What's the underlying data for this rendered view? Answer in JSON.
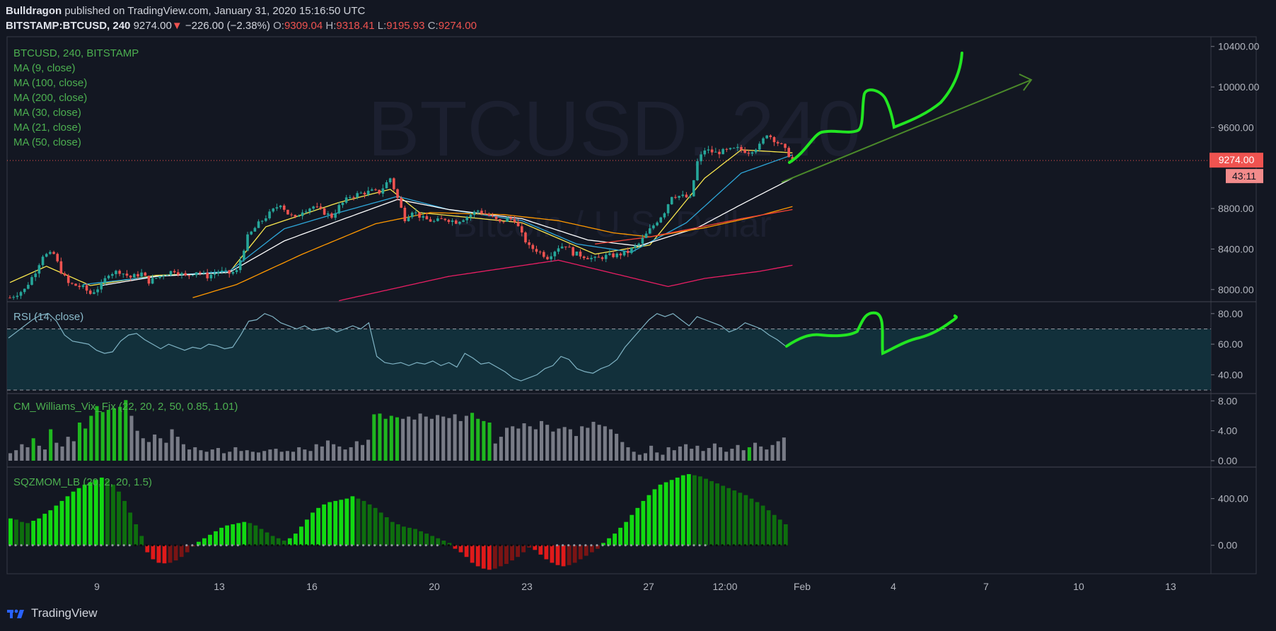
{
  "header": {
    "author": "Bulldragon",
    "published": "published on TradingView.com, January 31, 2020 15:16:50 UTC",
    "symbol": "BITSTAMP:BTCUSD, 240",
    "last": "9274.00",
    "change_arrow": "▼",
    "change": "−226.00 (−2.38%)",
    "o_label": "O:",
    "o": "9309.04",
    "h_label": "H:",
    "h": "9318.41",
    "l_label": "L:",
    "l": "9195.93",
    "c_label": "C:",
    "c": "9274.00"
  },
  "watermark": {
    "line1": "BTCUSD, 240",
    "line2": "Bitcoin / U.S. Dollar"
  },
  "legend": {
    "main": "BTCUSD, 240, BITSTAMP",
    "ma": [
      "MA (9, close)",
      "MA (100, close)",
      "MA (200, close)",
      "MA (30, close)",
      "MA (21, close)",
      "MA (50, close)"
    ]
  },
  "price_badge": {
    "value": "9274.00",
    "countdown": "43:11"
  },
  "footer": {
    "brand": "TradingView"
  },
  "colors": {
    "background": "#131722",
    "up": "#26a69a",
    "down": "#ef5350",
    "ma9": "#f9e74e",
    "ma21": "#2ea7d9",
    "ma30": "#ffffff",
    "ma50": "#ff9800",
    "ma100": "#f44336",
    "ma200": "#e91e63",
    "annotation": "#00ff00",
    "rsi": "#7fb3c4",
    "rsi_band": "#13353f",
    "vix_green": "#1fb71f",
    "vix_gray": "#787b86",
    "sqz_bright_green": "#12d912",
    "sqz_dark_green": "#0e6e0e",
    "sqz_bright_red": "#e01a1a",
    "sqz_dark_red": "#7a1414"
  },
  "chart_data": [
    {
      "type": "candlestick",
      "title": "BTCUSD, 240, BITSTAMP",
      "x_ticks": [
        "9",
        "13",
        "16",
        "20",
        "23",
        "27",
        "12:00",
        "Feb",
        "4",
        "7",
        "10",
        "13"
      ],
      "y_ticks": [
        "10400.00",
        "10000.00",
        "9600.00",
        "8800.00",
        "8400.00",
        "8000.00"
      ],
      "ylim": [
        7880,
        10440
      ],
      "last_price": 9274,
      "close_path": [
        [
          0,
          7920
        ],
        [
          4,
          8000
        ],
        [
          7,
          8180
        ],
        [
          9,
          8340
        ],
        [
          12,
          8350
        ],
        [
          14,
          8180
        ],
        [
          16,
          8060
        ],
        [
          20,
          8020
        ],
        [
          22,
          7960
        ],
        [
          25,
          8040
        ],
        [
          27,
          8160
        ],
        [
          30,
          8180
        ],
        [
          33,
          8120
        ],
        [
          36,
          8160
        ],
        [
          38,
          8080
        ],
        [
          42,
          8150
        ],
        [
          45,
          8190
        ],
        [
          48,
          8130
        ],
        [
          51,
          8180
        ],
        [
          54,
          8130
        ],
        [
          57,
          8180
        ],
        [
          60,
          8160
        ],
        [
          62,
          8180
        ],
        [
          65,
          8520
        ],
        [
          68,
          8650
        ],
        [
          71,
          8750
        ],
        [
          74,
          8850
        ],
        [
          76,
          8750
        ],
        [
          78,
          8700
        ],
        [
          80,
          8780
        ],
        [
          83,
          8820
        ],
        [
          86,
          8760
        ],
        [
          88,
          8720
        ],
        [
          90,
          8820
        ],
        [
          93,
          8920
        ],
        [
          96,
          8950
        ],
        [
          99,
          8970
        ],
        [
          101,
          8960
        ],
        [
          104,
          9100
        ],
        [
          106,
          8900
        ],
        [
          108,
          8700
        ],
        [
          110,
          8780
        ],
        [
          113,
          8700
        ],
        [
          116,
          8670
        ],
        [
          119,
          8700
        ],
        [
          122,
          8670
        ],
        [
          125,
          8720
        ],
        [
          128,
          8780
        ],
        [
          131,
          8730
        ],
        [
          134,
          8660
        ],
        [
          136,
          8700
        ],
        [
          138,
          8690
        ],
        [
          140,
          8540
        ],
        [
          142,
          8420
        ],
        [
          144,
          8390
        ],
        [
          147,
          8320
        ],
        [
          150,
          8420
        ],
        [
          152,
          8440
        ],
        [
          154,
          8360
        ],
        [
          157,
          8330
        ],
        [
          160,
          8300
        ],
        [
          163,
          8330
        ],
        [
          166,
          8340
        ],
        [
          169,
          8370
        ],
        [
          172,
          8450
        ],
        [
          175,
          8590
        ],
        [
          177,
          8680
        ],
        [
          179,
          8770
        ],
        [
          181,
          8930
        ],
        [
          184,
          8920
        ],
        [
          186,
          8900
        ],
        [
          188,
          9260
        ],
        [
          190,
          9380
        ],
        [
          193,
          9350
        ],
        [
          196,
          9370
        ],
        [
          199,
          9390
        ],
        [
          202,
          9360
        ],
        [
          205,
          9420
        ],
        [
          207,
          9540
        ],
        [
          209,
          9480
        ],
        [
          211,
          9420
        ],
        [
          213,
          9330
        ],
        [
          214,
          9274
        ]
      ],
      "series": [
        {
          "name": "MA (9, close)",
          "points": [
            [
              0,
              8070
            ],
            [
              10,
              8230
            ],
            [
              22,
              8040
            ],
            [
              40,
              8140
            ],
            [
              60,
              8170
            ],
            [
              70,
              8620
            ],
            [
              90,
              8860
            ],
            [
              104,
              8990
            ],
            [
              112,
              8760
            ],
            [
              140,
              8660
            ],
            [
              160,
              8350
            ],
            [
              175,
              8440
            ],
            [
              190,
              9100
            ],
            [
              200,
              9380
            ],
            [
              214,
              9350
            ]
          ]
        },
        {
          "name": "MA (21, close)",
          "points": [
            [
              20,
              8050
            ],
            [
              40,
              8130
            ],
            [
              60,
              8180
            ],
            [
              75,
              8600
            ],
            [
              90,
              8760
            ],
            [
              106,
              8920
            ],
            [
              120,
              8790
            ],
            [
              140,
              8680
            ],
            [
              155,
              8450
            ],
            [
              170,
              8370
            ],
            [
              185,
              8660
            ],
            [
              200,
              9150
            ],
            [
              214,
              9330
            ]
          ]
        },
        {
          "name": "MA (30, close)",
          "points": [
            [
              25,
              8040
            ],
            [
              40,
              8130
            ],
            [
              60,
              8170
            ],
            [
              75,
              8480
            ],
            [
              90,
              8680
            ],
            [
              106,
              8890
            ],
            [
              120,
              8790
            ],
            [
              140,
              8700
            ],
            [
              158,
              8490
            ],
            [
              172,
              8430
            ],
            [
              188,
              8610
            ],
            [
              200,
              8840
            ],
            [
              214,
              9100
            ]
          ]
        },
        {
          "name": "MA (50, close)",
          "points": [
            [
              50,
              7920
            ],
            [
              62,
              8050
            ],
            [
              80,
              8350
            ],
            [
              100,
              8650
            ],
            [
              115,
              8760
            ],
            [
              135,
              8740
            ],
            [
              150,
              8680
            ],
            [
              165,
              8560
            ],
            [
              175,
              8520
            ],
            [
              190,
              8610
            ],
            [
              205,
              8730
            ],
            [
              214,
              8820
            ]
          ]
        },
        {
          "name": "MA (100, close)",
          "points": [
            [
              160,
              8450
            ],
            [
              175,
              8520
            ],
            [
              185,
              8590
            ],
            [
              200,
              8700
            ],
            [
              214,
              8790
            ]
          ]
        },
        {
          "name": "MA (200, close)",
          "points": [
            [
              90,
              7890
            ],
            [
              120,
              8130
            ],
            [
              150,
              8290
            ],
            [
              180,
              8030
            ],
            [
              190,
              8110
            ],
            [
              205,
              8180
            ],
            [
              214,
              8240
            ]
          ]
        }
      ]
    },
    {
      "type": "line",
      "title": "RSI (14, close)",
      "y_ticks": [
        "80.00",
        "60.00",
        "40.00"
      ],
      "ylim": [
        30,
        85
      ],
      "band": [
        30,
        70
      ],
      "values": [
        64,
        68,
        72,
        76,
        79,
        80,
        75,
        66,
        62,
        61,
        60,
        56,
        54,
        55,
        62,
        66,
        67,
        63,
        60,
        57,
        60,
        58,
        56,
        58,
        57,
        60,
        59,
        57,
        58,
        66,
        75,
        76,
        80,
        78,
        74,
        72,
        70,
        72,
        69,
        70,
        71,
        68,
        70,
        72,
        70,
        74,
        52,
        48,
        47,
        48,
        46,
        48,
        47,
        49,
        46,
        48,
        45,
        54,
        51,
        47,
        48,
        45,
        42,
        38,
        36,
        38,
        40,
        44,
        46,
        52,
        50,
        44,
        42,
        41,
        44,
        46,
        50,
        58,
        64,
        70,
        76,
        80,
        78,
        80,
        76,
        72,
        78,
        76,
        74,
        72,
        68,
        70,
        74,
        72,
        70,
        66,
        63,
        59
      ]
    },
    {
      "type": "bar",
      "title": "CM_Williams_Vix_Fix (22, 20, 2, 50, 0.85, 1.01)",
      "y_ticks": [
        "8.00",
        "4.00",
        "0.00"
      ],
      "ylim": [
        0,
        8.5
      ],
      "values": [
        1.0,
        1.4,
        2.2,
        1.8,
        3.0,
        2.0,
        1.5,
        4.2,
        2.4,
        1.9,
        3.2,
        2.6,
        5.1,
        4.3,
        6.0,
        7.3,
        6.5,
        6.8,
        7.0,
        7.2,
        8.1,
        6.0,
        4.0,
        3.0,
        2.5,
        3.5,
        3.0,
        2.4,
        4.2,
        3.2,
        2.2,
        1.5,
        1.8,
        1.4,
        1.2,
        1.5,
        1.7,
        1.0,
        1.2,
        1.8,
        1.3,
        1.4,
        1.2,
        1.1,
        1.3,
        1.5,
        1.6,
        1.2,
        1.3,
        1.2,
        1.8,
        1.5,
        1.3,
        2.2,
        1.9,
        2.7,
        2.2,
        1.9,
        1.5,
        1.8,
        2.6,
        2.1,
        2.8,
        6.2,
        6.3,
        5.6,
        6.0,
        5.8,
        5.6,
        5.9,
        5.5,
        6.3,
        5.9,
        5.6,
        6.1,
        5.9,
        5.7,
        6.2,
        5.3,
        6.0,
        6.4,
        5.6,
        5.3,
        5.1,
        2.3,
        3.2,
        4.4,
        4.6,
        4.3,
        5.0,
        4.6,
        4.2,
        5.3,
        4.8,
        3.9,
        4.3,
        4.5,
        4.2,
        3.3,
        4.6,
        4.4,
        5.2,
        4.8,
        4.6,
        4.2,
        3.6,
        2.5,
        1.8,
        1.2,
        0.8,
        1.0,
        2.0,
        1.1,
        0.8,
        1.8,
        1.4,
        1.9,
        2.2,
        1.6,
        2.0,
        1.3,
        1.7,
        2.3,
        1.8,
        1.2,
        1.6,
        2.1,
        1.4,
        1.8,
        2.4,
        1.9,
        1.5,
        2.1,
        2.6,
        3.1
      ],
      "green_indices": [
        4,
        7,
        12,
        13,
        14,
        15,
        16,
        17,
        18,
        19,
        20,
        63,
        64,
        65,
        66,
        67,
        80,
        81,
        82,
        83,
        128
      ]
    },
    {
      "type": "bar",
      "title": "SQZMOM_LB (20, 2, 20, 1.5)",
      "y_ticks": [
        "400.00",
        "0.00"
      ],
      "ylim": [
        -220,
        640
      ],
      "values": [
        230,
        220,
        200,
        190,
        210,
        230,
        270,
        300,
        340,
        380,
        420,
        460,
        490,
        520,
        540,
        560,
        580,
        560,
        520,
        460,
        380,
        280,
        180,
        80,
        -60,
        -120,
        -150,
        -155,
        -150,
        -130,
        -100,
        -60,
        -10,
        30,
        60,
        90,
        120,
        150,
        170,
        180,
        190,
        200,
        190,
        170,
        140,
        110,
        80,
        60,
        40,
        60,
        100,
        160,
        220,
        280,
        320,
        350,
        370,
        380,
        390,
        400,
        420,
        400,
        380,
        350,
        320,
        280,
        240,
        200,
        180,
        160,
        150,
        140,
        120,
        100,
        80,
        60,
        40,
        20,
        -30,
        -60,
        -100,
        -150,
        -180,
        -200,
        -210,
        -200,
        -180,
        -160,
        -130,
        -100,
        -60,
        -20,
        -40,
        -80,
        -120,
        -150,
        -170,
        -180,
        -170,
        -150,
        -120,
        -90,
        -60,
        -30,
        20,
        60,
        100,
        150,
        200,
        260,
        320,
        380,
        430,
        480,
        520,
        540,
        560,
        580,
        600,
        610,
        600,
        590,
        570,
        550,
        530,
        510,
        490,
        470,
        450,
        430,
        400,
        370,
        340,
        300,
        260,
        220,
        180
      ]
    }
  ]
}
